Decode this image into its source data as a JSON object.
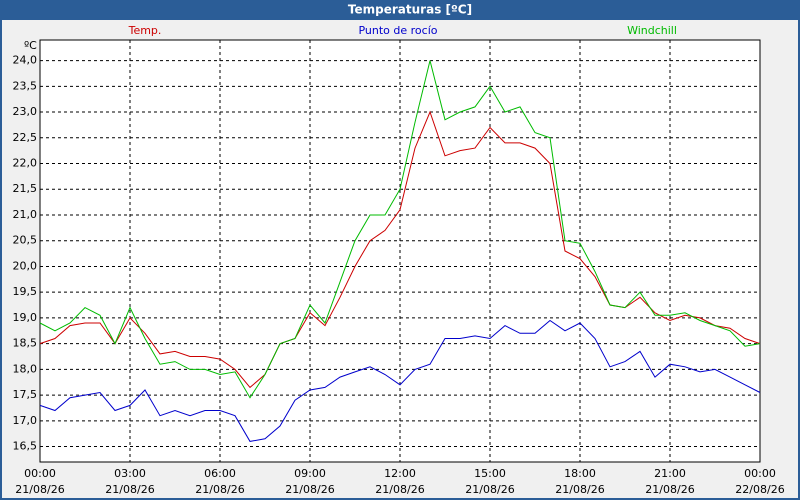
{
  "chart_data": {
    "type": "line",
    "title": "Temperaturas [ºC]",
    "y_unit": "ºC",
    "x": [
      0,
      0.5,
      1,
      1.5,
      2,
      2.5,
      3,
      3.5,
      4,
      4.5,
      5,
      5.5,
      6,
      6.5,
      7,
      7.5,
      8,
      8.5,
      9,
      9.5,
      10,
      10.5,
      11,
      11.5,
      12,
      12.5,
      13,
      13.5,
      14,
      14.5,
      15,
      15.5,
      16,
      16.5,
      17,
      17.5,
      18,
      18.5,
      19,
      19.5,
      20,
      20.5,
      21,
      21.5,
      22,
      22.5,
      23,
      23.5,
      24
    ],
    "series": [
      {
        "name": "Temp.",
        "color": "#cc0000",
        "values": [
          18.5,
          18.6,
          18.85,
          18.9,
          18.9,
          18.5,
          19.0,
          18.7,
          18.3,
          18.35,
          18.25,
          18.25,
          18.2,
          18.0,
          17.65,
          17.9,
          18.5,
          18.6,
          19.1,
          18.85,
          19.4,
          20.0,
          20.5,
          20.7,
          21.1,
          22.3,
          23.0,
          22.15,
          22.25,
          22.3,
          22.7,
          22.4,
          22.4,
          22.3,
          22.0,
          20.3,
          20.15,
          19.8,
          19.25,
          19.2,
          19.4,
          19.1,
          18.95,
          19.05,
          19.0,
          18.85,
          18.8,
          18.6,
          18.5
        ]
      },
      {
        "name": "Punto de rocío",
        "color": "#0000cc",
        "values": [
          17.3,
          17.2,
          17.45,
          17.5,
          17.55,
          17.2,
          17.3,
          17.6,
          17.1,
          17.2,
          17.1,
          17.2,
          17.2,
          17.1,
          16.6,
          16.65,
          16.9,
          17.4,
          17.6,
          17.65,
          17.85,
          17.95,
          18.05,
          17.9,
          17.7,
          18.0,
          18.1,
          18.6,
          18.6,
          18.65,
          18.6,
          18.85,
          18.7,
          18.7,
          18.95,
          18.75,
          18.9,
          18.6,
          18.05,
          18.15,
          18.35,
          17.85,
          18.1,
          18.05,
          17.95,
          18.0,
          17.85,
          17.7,
          17.55
        ]
      },
      {
        "name": "Windchill",
        "color": "#00bb00",
        "values": [
          18.9,
          18.75,
          18.9,
          19.2,
          19.05,
          18.5,
          19.2,
          18.6,
          18.1,
          18.15,
          18.0,
          18.0,
          17.9,
          17.95,
          17.45,
          17.9,
          18.5,
          18.6,
          19.25,
          18.9,
          19.7,
          20.5,
          21.0,
          21.0,
          21.5,
          22.8,
          24.0,
          22.85,
          23.0,
          23.1,
          23.5,
          23.0,
          23.1,
          22.6,
          22.5,
          20.5,
          20.45,
          19.9,
          19.25,
          19.2,
          19.5,
          19.05,
          19.05,
          19.1,
          18.95,
          18.85,
          18.75,
          18.45,
          18.5
        ]
      }
    ],
    "xlim": [
      0,
      24
    ],
    "xticks": [
      {
        "value": 0,
        "label": "00:00"
      },
      {
        "value": 3,
        "label": "03:00"
      },
      {
        "value": 6,
        "label": "06:00"
      },
      {
        "value": 9,
        "label": "09:00"
      },
      {
        "value": 12,
        "label": "12:00"
      },
      {
        "value": 15,
        "label": "15:00"
      },
      {
        "value": 18,
        "label": "18:00"
      },
      {
        "value": 21,
        "label": "21:00"
      },
      {
        "value": 24,
        "label": "00:00"
      }
    ],
    "xtick_dates": [
      "21/08/26",
      "21/08/26",
      "21/08/26",
      "21/08/26",
      "21/08/26",
      "21/08/26",
      "21/08/26",
      "21/08/26",
      "22/08/26"
    ],
    "ylim": [
      16.2,
      24.4
    ],
    "yticks": [
      {
        "value": 16.5,
        "label": "16,5"
      },
      {
        "value": 17,
        "label": "17,0"
      },
      {
        "value": 17.5,
        "label": "17,5"
      },
      {
        "value": 18,
        "label": "18,0"
      },
      {
        "value": 18.5,
        "label": "18,5"
      },
      {
        "value": 19,
        "label": "19,0"
      },
      {
        "value": 19.5,
        "label": "19,5"
      },
      {
        "value": 20,
        "label": "20,0"
      },
      {
        "value": 20.5,
        "label": "20,5"
      },
      {
        "value": 21,
        "label": "21,0"
      },
      {
        "value": 21.5,
        "label": "21,5"
      },
      {
        "value": 22,
        "label": "22,0"
      },
      {
        "value": 22.5,
        "label": "22,5"
      },
      {
        "value": 23,
        "label": "23,0"
      },
      {
        "value": 23.5,
        "label": "23,5"
      },
      {
        "value": 24,
        "label": "24,0"
      }
    ],
    "grid": true
  }
}
